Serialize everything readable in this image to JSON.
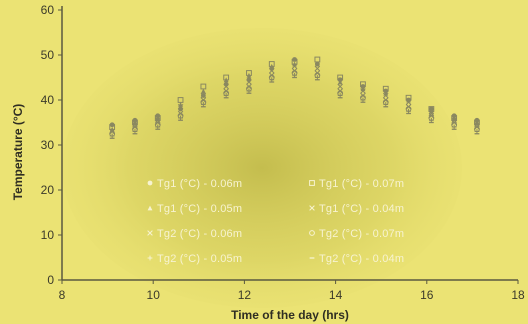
{
  "chart_data": {
    "type": "scatter",
    "title": "",
    "xlabel": "Time of the day (hrs)",
    "ylabel": "Temperature (°C)",
    "xlim": [
      8,
      18
    ],
    "ylim": [
      0,
      60
    ],
    "xticks": [
      8,
      10,
      12,
      14,
      16,
      18
    ],
    "yticks": [
      0,
      10,
      20,
      30,
      40,
      50,
      60
    ],
    "grid": false,
    "legend_position": "center",
    "series": [
      {
        "name": "Tg1 (°C) - 0.06m",
        "marker": "circle",
        "x": [
          9.1,
          9.6,
          10.1,
          10.6,
          11.1,
          11.6,
          12.1,
          12.6,
          13.1,
          13.6,
          14.1,
          14.6,
          15.1,
          15.6,
          16.1,
          16.6,
          17.1
        ],
        "y": [
          34.5,
          35.5,
          36.5,
          38,
          41,
          43.5,
          44.5,
          47,
          49,
          48,
          44.5,
          43,
          42,
          40,
          38,
          36.5,
          35.5
        ]
      },
      {
        "name": "Tg1 (°C) - 0.07m",
        "marker": "square",
        "x": [
          9.1,
          9.6,
          10.1,
          10.6,
          11.1,
          11.6,
          12.1,
          12.6,
          13.1,
          13.6,
          14.1,
          14.6,
          15.1,
          15.6,
          16.1,
          16.6,
          17.1
        ],
        "y": [
          34,
          35,
          36,
          40,
          43,
          45,
          46,
          48,
          48.5,
          49,
          45,
          43.5,
          42.5,
          40.5,
          38,
          36,
          35
        ]
      },
      {
        "name": "Tg1 (°C) - 0.05m",
        "marker": "triangle",
        "x": [
          9.1,
          9.6,
          10.1,
          10.6,
          11.1,
          11.6,
          12.1,
          12.6,
          13.1,
          13.6,
          14.1,
          14.6,
          15.1,
          15.6,
          16.1,
          16.6,
          17.1
        ],
        "y": [
          33.5,
          35,
          36,
          39,
          42,
          44.5,
          45.5,
          47.5,
          48,
          48,
          44,
          42.5,
          41.5,
          40,
          37.5,
          36,
          35
        ]
      },
      {
        "name": "Tg1 (°C) - 0.04m",
        "marker": "x",
        "x": [
          9.1,
          9.6,
          10.1,
          10.6,
          11.1,
          11.6,
          12.1,
          12.6,
          13.1,
          13.6,
          14.1,
          14.6,
          15.1,
          15.6,
          16.1,
          16.6,
          17.1
        ],
        "y": [
          33,
          34.5,
          35.5,
          38.5,
          41,
          43,
          44,
          46.5,
          47.5,
          47,
          43,
          42,
          41,
          39.5,
          37,
          35.5,
          34.5
        ]
      },
      {
        "name": "Tg2 (°C) - 0.06m",
        "marker": "x",
        "x": [
          9.1,
          9.6,
          10.1,
          10.6,
          11.1,
          11.6,
          12.1,
          12.6,
          13.1,
          13.6,
          14.1,
          14.6,
          15.1,
          15.6,
          16.1,
          16.6,
          17.1
        ],
        "y": [
          33,
          34,
          35,
          37,
          40,
          42,
          43,
          45.5,
          46.5,
          46,
          42,
          41,
          40,
          38.5,
          36.5,
          35,
          34
        ]
      },
      {
        "name": "Tg2 (°C) - 0.07m",
        "marker": "circle-open",
        "x": [
          9.1,
          9.6,
          10.1,
          10.6,
          11.1,
          11.6,
          12.1,
          12.6,
          13.1,
          13.6,
          14.1,
          14.6,
          15.1,
          15.6,
          16.1,
          16.6,
          17.1
        ],
        "y": [
          32.5,
          33.5,
          34.5,
          36.5,
          39.5,
          41.5,
          42.5,
          45,
          46,
          45.5,
          41.5,
          40.5,
          39.5,
          38,
          36,
          34.5,
          33.5
        ]
      },
      {
        "name": "Tg2 (°C) - 0.05m",
        "marker": "plus",
        "x": [
          9.1,
          9.6,
          10.1,
          10.6,
          11.1,
          11.6,
          12.1,
          12.6,
          13.1,
          13.6,
          14.1,
          14.6,
          15.1,
          15.6,
          16.1,
          16.6,
          17.1
        ],
        "y": [
          32,
          33,
          34,
          36,
          39,
          41,
          42,
          44.5,
          45.5,
          45,
          41,
          40,
          39,
          37.5,
          35.5,
          34,
          33
        ]
      },
      {
        "name": "Tg2 (°C) - 0.04m",
        "marker": "dash",
        "x": [
          9.1,
          9.6,
          10.1,
          10.6,
          11.1,
          11.6,
          12.1,
          12.6,
          13.1,
          13.6,
          14.1,
          14.6,
          15.1,
          15.6,
          16.1,
          16.6,
          17.1
        ],
        "y": [
          31.5,
          32.5,
          33.5,
          35.5,
          38.5,
          40.5,
          41.5,
          44,
          45,
          44.5,
          40.5,
          39.5,
          38.5,
          37,
          35,
          33.5,
          32.5
        ]
      }
    ]
  },
  "colors": {
    "background": "#ebe374",
    "glow": "#c9c252",
    "axis": "#5a5940",
    "marker": "#8a8860",
    "legend_text": "#f7f3d0"
  }
}
